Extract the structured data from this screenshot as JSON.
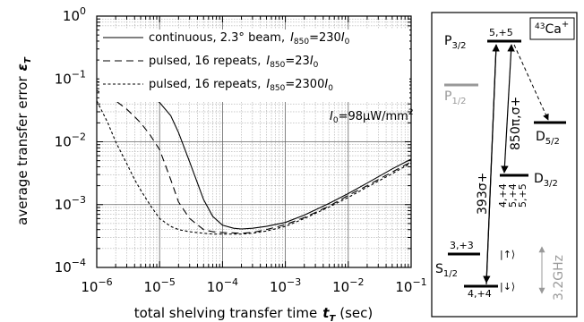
{
  "chart_data": {
    "type": "line",
    "xscale": "log",
    "yscale": "log",
    "xlim": [
      1e-06,
      0.1
    ],
    "ylim": [
      0.0001,
      1
    ],
    "grid": true,
    "legend_position": "top-right",
    "xlabel": "total shelving transfer time",
    "xlabel_symbol": "t",
    "xlabel_subscript": "T",
    "xlabel_unit": "(sec)",
    "ylabel": "average transfer error",
    "ylabel_symbol": "ε",
    "ylabel_subscript": "T",
    "x_ticks": [
      {
        "value": 1e-06,
        "base": "10",
        "exp": "−6"
      },
      {
        "value": 1e-05,
        "base": "10",
        "exp": "−5"
      },
      {
        "value": 0.0001,
        "base": "10",
        "exp": "−4"
      },
      {
        "value": 0.001,
        "base": "10",
        "exp": "−3"
      },
      {
        "value": 0.01,
        "base": "10",
        "exp": "−2"
      },
      {
        "value": 0.1,
        "base": "10",
        "exp": "−1"
      }
    ],
    "y_ticks": [
      {
        "value": 0.0001,
        "base": "10",
        "exp": "−4"
      },
      {
        "value": 0.001,
        "base": "10",
        "exp": "−3"
      },
      {
        "value": 0.01,
        "base": "10",
        "exp": "−2"
      },
      {
        "value": 0.1,
        "base": "10",
        "exp": "−1"
      },
      {
        "value": 1,
        "base": "10",
        "exp": "0"
      }
    ],
    "annotation": {
      "symbol": "I",
      "sub": "0",
      "text": "=98μW/mm",
      "sup": "2"
    },
    "series": [
      {
        "name": "continuous, 2.3° beam,",
        "name_symbol": "I",
        "name_sub": "850",
        "name_value": "=230",
        "name_unit_symbol": "I",
        "name_unit_sub": "0",
        "style": "solid",
        "x": [
          1e-06,
          2e-06,
          3e-06,
          5e-06,
          7e-06,
          1e-05,
          1.5e-05,
          2e-05,
          3e-05,
          5e-05,
          7e-05,
          0.0001,
          0.00015,
          0.0002,
          0.0003,
          0.0005,
          0.001,
          0.002,
          0.005,
          0.01,
          0.02,
          0.05,
          0.1
        ],
        "y": [
          0.09,
          0.08,
          0.074,
          0.065,
          0.055,
          0.042,
          0.026,
          0.014,
          0.0048,
          0.0012,
          0.00065,
          0.00047,
          0.00042,
          0.00041,
          0.00042,
          0.00045,
          0.00052,
          0.00068,
          0.00105,
          0.0015,
          0.0022,
          0.0037,
          0.0053
        ]
      },
      {
        "name": "pulsed, 16 repeats,",
        "name_symbol": "I",
        "name_sub": "850",
        "name_value": "=23",
        "name_unit_symbol": "I",
        "name_unit_sub": "0",
        "style": "long-dash",
        "x": [
          1e-06,
          1.5e-06,
          2e-06,
          3e-06,
          4e-06,
          5e-06,
          7e-06,
          1e-05,
          1.5e-05,
          2e-05,
          3e-05,
          5e-05,
          7e-05,
          0.0001,
          0.0002,
          0.0003,
          0.0005,
          0.001,
          0.002,
          0.005,
          0.01,
          0.02,
          0.05,
          0.1
        ],
        "y": [
          0.065,
          0.055,
          0.045,
          0.033,
          0.025,
          0.02,
          0.013,
          0.0075,
          0.0025,
          0.0011,
          0.0006,
          0.0004,
          0.00037,
          0.00036,
          0.00035,
          0.00036,
          0.0004,
          0.00048,
          0.00062,
          0.00095,
          0.0014,
          0.002,
          0.0033,
          0.0048
        ]
      },
      {
        "name": "pulsed, 16 repeats,",
        "name_symbol": "I",
        "name_sub": "850",
        "name_value": "=2300",
        "name_unit_symbol": "I",
        "name_unit_sub": "0",
        "style": "short-dash",
        "x": [
          1e-06,
          1.5e-06,
          2e-06,
          3e-06,
          4e-06,
          5e-06,
          7e-06,
          1e-05,
          1.5e-05,
          2e-05,
          3e-05,
          5e-05,
          7e-05,
          0.0001,
          0.0002,
          0.0003,
          0.0005,
          0.001,
          0.002,
          0.005,
          0.01,
          0.02,
          0.05,
          0.1
        ],
        "y": [
          0.045,
          0.02,
          0.01,
          0.0045,
          0.0025,
          0.0017,
          0.001,
          0.0006,
          0.00045,
          0.0004,
          0.00037,
          0.00035,
          0.00034,
          0.00034,
          0.00034,
          0.00035,
          0.00038,
          0.00045,
          0.0006,
          0.00092,
          0.0013,
          0.0019,
          0.0031,
          0.0046
        ]
      }
    ]
  },
  "level_diagram": {
    "ion": {
      "sup": "43",
      "name": "Ca",
      "charge": "+"
    },
    "levels": [
      {
        "id": "P32",
        "letter": "P",
        "sub": "3/2",
        "sublevel": "5,+5"
      },
      {
        "id": "P12",
        "letter": "P",
        "sub": "1/2"
      },
      {
        "id": "D52",
        "letter": "D",
        "sub": "5/2"
      },
      {
        "id": "D32",
        "letter": "D",
        "sub": "3/2",
        "sublevels": [
          "4,+4",
          "5,+4",
          "5,+5"
        ]
      },
      {
        "id": "S12",
        "letter": "S",
        "sub": "1/2",
        "upper": "3,+3",
        "lower": "4,+4",
        "ket_up": "|↑⟩",
        "ket_down": "|↓⟩"
      }
    ],
    "transitions": {
      "t393": "393σ+",
      "t850": "850π,σ+"
    },
    "hyperfine_splitting": "3.2GHz"
  }
}
